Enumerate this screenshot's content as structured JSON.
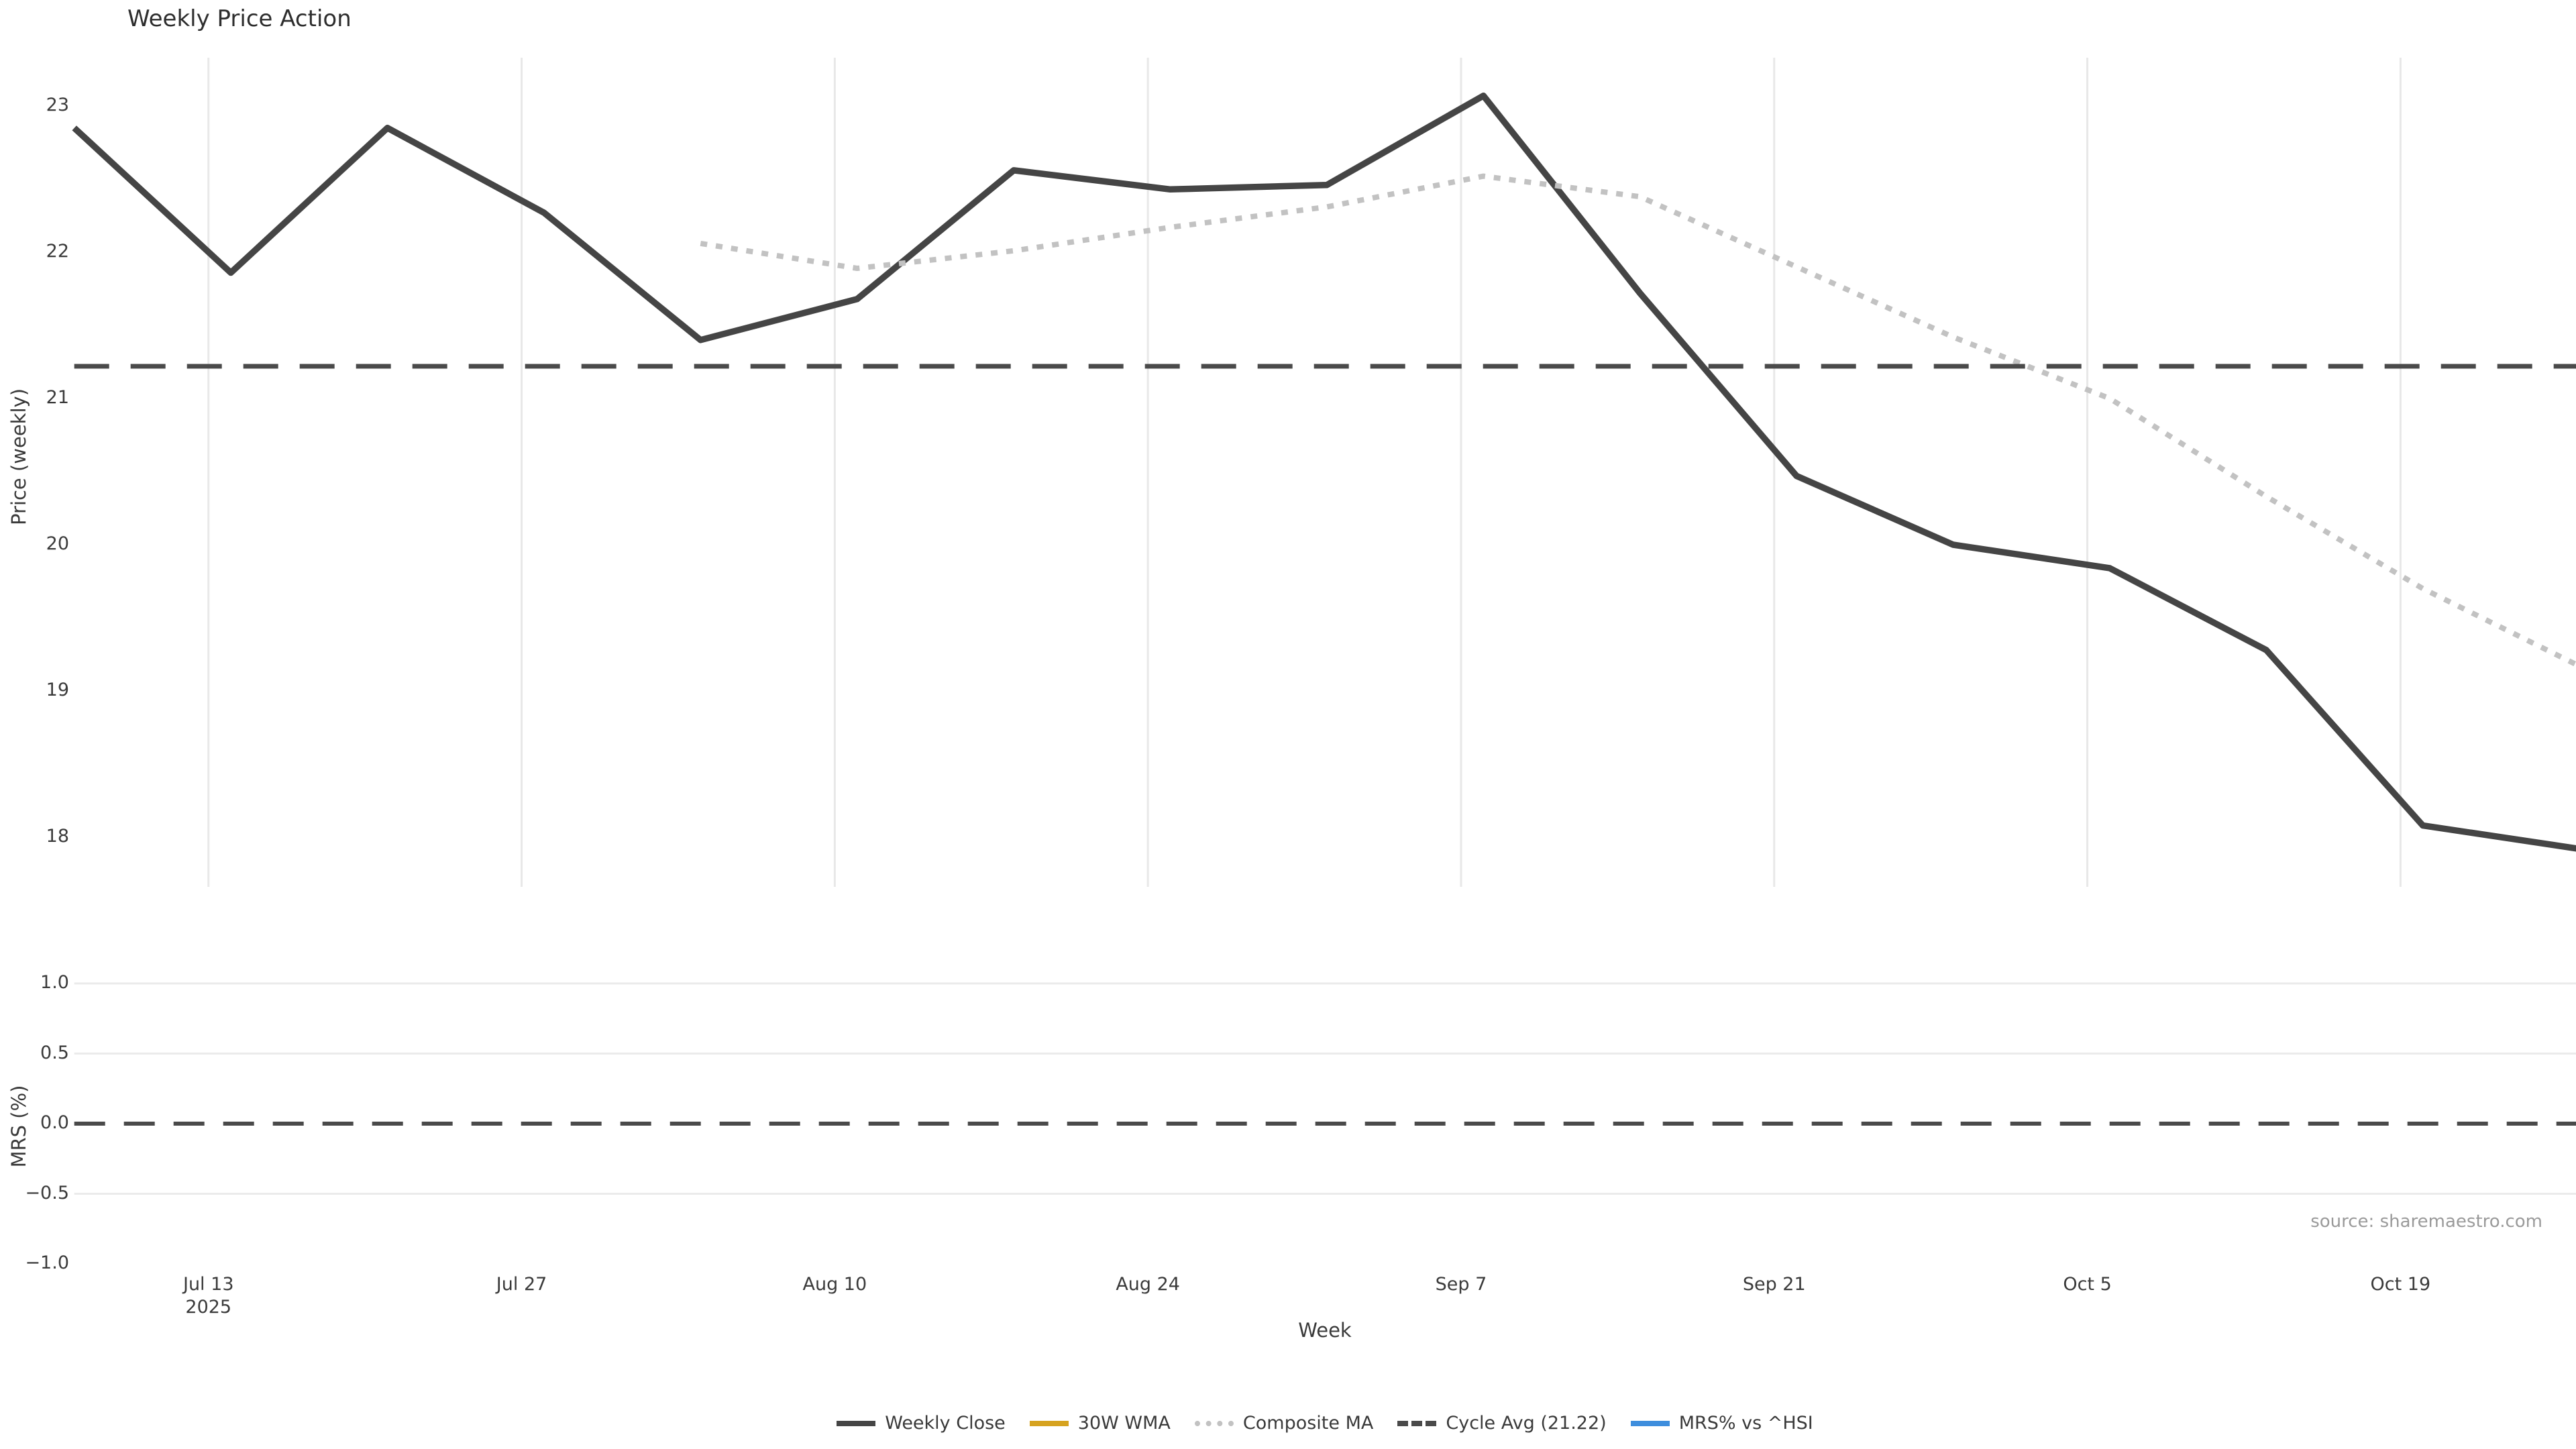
{
  "title": "Weekly Price Action",
  "xlabel": "Week",
  "source_note": "source: sharemaestro.com",
  "colors": {
    "weekly_close": "#454545",
    "wma_30w": "#d6a320",
    "composite_ma": "#c2c2c2",
    "cycle_avg": "#4a4a4a",
    "mrs_line": "#3e8edd",
    "gridline": "#e8e8e8",
    "mrs_gridline": "#ebebeb",
    "tick_text": "#3a3a3a",
    "source_text": "#9a9a9a"
  },
  "legend": {
    "items": [
      {
        "label": "Weekly Close",
        "color": "#454545",
        "style": "solid"
      },
      {
        "label": "30W WMA",
        "color": "#d6a320",
        "style": "solid"
      },
      {
        "label": "Composite MA",
        "color": "#c2c2c2",
        "style": "dotted"
      },
      {
        "label": "Cycle Avg (21.22)",
        "color": "#4a4a4a",
        "style": "dashed"
      },
      {
        "label": "MRS% vs ^HSI",
        "color": "#3e8edd",
        "style": "solid"
      }
    ]
  },
  "panels": {
    "price": {
      "ylabel": "Price (weekly)",
      "yticks": [
        23,
        22,
        21,
        20,
        19,
        18
      ],
      "ylim": [
        17.66,
        23.33
      ]
    },
    "mrs": {
      "ylabel": "MRS (%)",
      "yticks": [
        "1.0",
        "0.5",
        "0.0",
        "−0.5",
        "−1.0"
      ],
      "ytick_values": [
        1.0,
        0.5,
        0.0,
        -0.5,
        -1.0
      ],
      "gridline_values": [
        1.0,
        0.5,
        -0.5
      ],
      "zero_line": 0.0,
      "ylim": [
        -1.15,
        1.15
      ]
    }
  },
  "x_ticks": [
    {
      "label": "Jul 13",
      "sublabel": "2025",
      "day": 6
    },
    {
      "label": "Jul 27",
      "day": 20
    },
    {
      "label": "Aug 10",
      "day": 34
    },
    {
      "label": "Aug 24",
      "day": 48
    },
    {
      "label": "Sep 7",
      "day": 62
    },
    {
      "label": "Sep 21",
      "day": 76
    },
    {
      "label": "Oct 5",
      "day": 90
    },
    {
      "label": "Oct 19",
      "day": 104
    }
  ],
  "chart_data": {
    "type": "line",
    "title": "Weekly Price Action",
    "xlabel": "Week",
    "year": "2025",
    "x": [
      "Jul 7",
      "Jul 14",
      "Jul 21",
      "Jul 28",
      "Aug 4",
      "Aug 11",
      "Aug 18",
      "Aug 25",
      "Sep 1",
      "Sep 8",
      "Sep 15",
      "Sep 22",
      "Sep 29",
      "Oct 6",
      "Oct 13",
      "Oct 20",
      "Oct 27"
    ],
    "series": [
      {
        "name": "Weekly Close",
        "panel": "price",
        "style": "solid",
        "color": "#454545",
        "values": [
          22.85,
          21.86,
          22.85,
          22.27,
          21.4,
          21.68,
          22.56,
          22.43,
          22.46,
          23.07,
          21.72,
          20.47,
          20.0,
          19.84,
          19.28,
          18.08,
          17.92
        ]
      },
      {
        "name": "30W WMA",
        "panel": "price",
        "style": "solid",
        "color": "#d6a320",
        "values": []
      },
      {
        "name": "Composite MA",
        "panel": "price",
        "style": "dotted",
        "color": "#c2c2c2",
        "values": [
          null,
          null,
          null,
          null,
          22.06,
          21.89,
          22.01,
          22.17,
          22.31,
          22.52,
          22.38,
          21.9,
          21.42,
          21.0,
          20.33,
          19.7,
          19.17
        ]
      },
      {
        "name": "Cycle Avg (21.22)",
        "panel": "price",
        "style": "dashed",
        "color": "#4a4a4a",
        "constant": 21.22
      },
      {
        "name": "MRS% vs ^HSI",
        "panel": "mrs",
        "style": "solid",
        "color": "#3e8edd",
        "values": []
      }
    ],
    "price_axis": {
      "label": "Price (weekly)",
      "ticks": [
        23,
        22,
        21,
        20,
        19,
        18
      ],
      "ylim": [
        17.66,
        23.33
      ],
      "grid": "vertical-only"
    },
    "mrs_axis": {
      "label": "MRS (%)",
      "ticks": [
        1.0,
        0.5,
        0.0,
        -0.5,
        -1.0
      ],
      "ylim": [
        -1.15,
        1.15
      ],
      "grid": "horizontal-only",
      "zero_dashed_line": 0.0
    },
    "legend_position": "bottom-center"
  }
}
